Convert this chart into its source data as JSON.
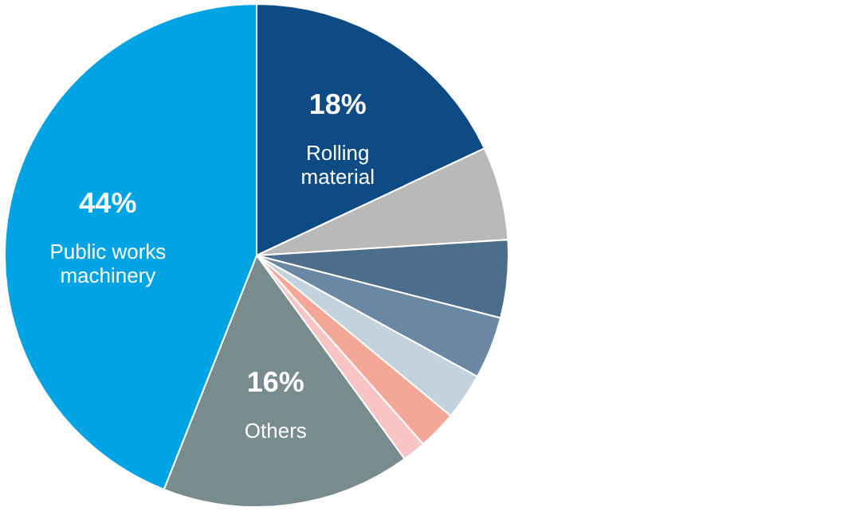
{
  "chart_data": {
    "type": "pie",
    "categories": [
      "Rolling material",
      null,
      null,
      null,
      null,
      null,
      null,
      "Others",
      "Public works machinery"
    ],
    "values": [
      18,
      6,
      5,
      4,
      3,
      2.5,
      1.5,
      16,
      44
    ],
    "value_labels": [
      "18%",
      null,
      null,
      null,
      null,
      null,
      null,
      "16%",
      "44%"
    ],
    "colors": [
      "#0e4a84",
      "#b9b9b9",
      "#4c6d8c",
      "#6a88a3",
      "#c4d2dd",
      "#f4a797",
      "#f9c4c4",
      "#788b8d",
      "#00a4e4"
    ]
  }
}
